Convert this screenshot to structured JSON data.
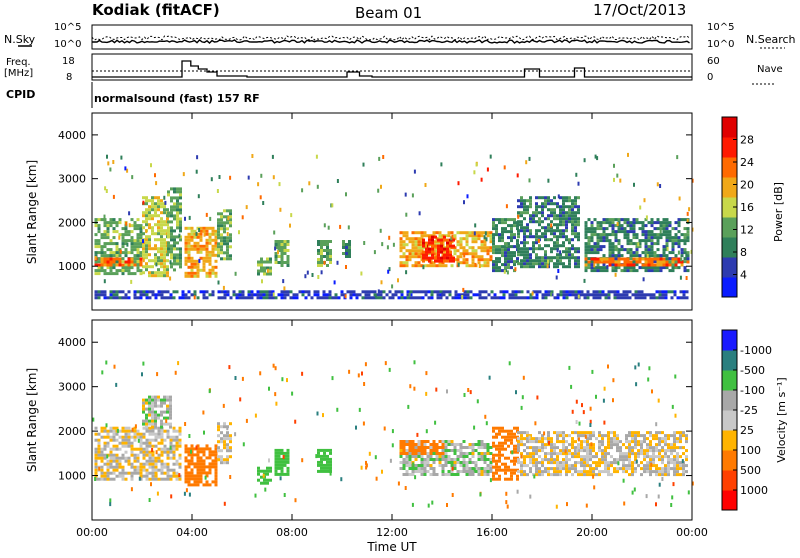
{
  "header": {
    "station": "Kodiak (fitACF)",
    "beam": "Beam 01",
    "date": "17/Oct/2013"
  },
  "noise_panel": {
    "left_label": "N.Sky",
    "right_label": "N.Search",
    "left_ticks": [
      "10^5",
      "10^0"
    ],
    "right_ticks": [
      "10^5",
      "10^0"
    ]
  },
  "freq_panel": {
    "left_label_line1": "Freq.",
    "left_label_line2": "[MHz]",
    "right_label": "Nave",
    "left_ticks": [
      "18",
      "8"
    ],
    "right_ticks": [
      "60",
      "0"
    ],
    "freq_steps": [
      {
        "t": 0.0,
        "v": 9.5
      },
      {
        "t": 3.6,
        "v": 17.5
      },
      {
        "t": 3.95,
        "v": 15.0
      },
      {
        "t": 4.25,
        "v": 13.5
      },
      {
        "t": 4.6,
        "v": 12.0
      },
      {
        "t": 5.0,
        "v": 10.0
      },
      {
        "t": 6.2,
        "v": 9.5
      },
      {
        "t": 10.2,
        "v": 12.0
      },
      {
        "t": 10.7,
        "v": 10.0
      },
      {
        "t": 11.2,
        "v": 9.5
      },
      {
        "t": 17.3,
        "v": 13.5
      },
      {
        "t": 17.9,
        "v": 9.5
      },
      {
        "t": 19.3,
        "v": 14.0
      },
      {
        "t": 19.7,
        "v": 9.5
      },
      {
        "t": 24.0,
        "v": 9.5
      }
    ]
  },
  "cpid": {
    "label": "CPID",
    "value": "normalsound (fast) 157 RF"
  },
  "colors": {
    "power": [
      "#0a1cff",
      "#2d3bb0",
      "#2f7f5a",
      "#5aa05a",
      "#c8d84a",
      "#f0a818",
      "#ff6a00",
      "#ff1a00",
      "#e00000"
    ],
    "velocity": [
      "#ff0000",
      "#ff4000",
      "#ff7a00",
      "#ffb400",
      "#c8c8c8",
      "#a8a8a8",
      "#40c040",
      "#2a7f7f",
      "#1a1aff"
    ]
  },
  "chart_data": [
    {
      "type": "heatmap",
      "name": "power-panel",
      "xlabel": "",
      "ylabel": "Slant Range [km]",
      "ylim": [
        0,
        4500
      ],
      "xlim": [
        0,
        24
      ],
      "yticks": [
        "1000",
        "2000",
        "3000",
        "4000"
      ],
      "colorbar": {
        "label": "Power [dB]",
        "ticks": [
          "4",
          "8",
          "12",
          "16",
          "20",
          "24",
          "28"
        ],
        "range": [
          0,
          32
        ]
      },
      "regions": [
        {
          "t0": 0.1,
          "t1": 2.0,
          "r0": 800,
          "r1": 2100,
          "level": 14
        },
        {
          "t0": 2.0,
          "t1": 3.0,
          "r0": 800,
          "r1": 2600,
          "level": 16
        },
        {
          "t0": 3.0,
          "t1": 3.5,
          "r0": 900,
          "r1": 2800,
          "level": 13
        },
        {
          "t0": 3.7,
          "t1": 5.0,
          "r0": 800,
          "r1": 1900,
          "level": 18
        },
        {
          "t0": 5.0,
          "t1": 5.6,
          "r0": 1200,
          "r1": 2300,
          "level": 12
        },
        {
          "t0": 6.6,
          "t1": 7.1,
          "r0": 800,
          "r1": 1200,
          "level": 14
        },
        {
          "t0": 7.3,
          "t1": 7.8,
          "r0": 1000,
          "r1": 1600,
          "level": 11
        },
        {
          "t0": 9.0,
          "t1": 9.5,
          "r0": 1000,
          "r1": 1600,
          "level": 13
        },
        {
          "t0": 10.0,
          "t1": 10.3,
          "r0": 1200,
          "r1": 1600,
          "level": 10
        },
        {
          "t0": 12.3,
          "t1": 16.0,
          "r0": 1000,
          "r1": 1800,
          "level": 20
        },
        {
          "t0": 13.2,
          "t1": 14.4,
          "r0": 1100,
          "r1": 1700,
          "level": 28
        },
        {
          "t0": 16.0,
          "t1": 17.0,
          "r0": 900,
          "r1": 2100,
          "level": 9
        },
        {
          "t0": 17.0,
          "t1": 19.5,
          "r0": 1000,
          "r1": 2600,
          "level": 8
        },
        {
          "t0": 19.7,
          "t1": 23.8,
          "r0": 900,
          "r1": 2100,
          "level": 9
        },
        {
          "t0": 19.7,
          "t1": 23.8,
          "r0": 1000,
          "r1": 1200,
          "level": 24
        },
        {
          "t0": 0.1,
          "t1": 2.0,
          "r0": 1000,
          "r1": 1200,
          "level": 24
        },
        {
          "t0": 0.1,
          "t1": 23.8,
          "r0": 250,
          "r1": 450,
          "level": 6
        }
      ]
    },
    {
      "type": "heatmap",
      "name": "velocity-panel",
      "xlabel": "Time UT",
      "ylabel": "Slant Range [km]",
      "ylim": [
        0,
        4500
      ],
      "xlim": [
        0,
        24
      ],
      "xticks": [
        "00:00",
        "04:00",
        "08:00",
        "12:00",
        "16:00",
        "20:00",
        "00:00"
      ],
      "yticks": [
        "1000",
        "2000",
        "3000",
        "4000"
      ],
      "colorbar": {
        "label": "Velocity [m s⁻¹]",
        "ticks": [
          "-1000",
          "-500",
          "-100",
          "-25",
          "25",
          "100",
          "500",
          "1000"
        ]
      },
      "regions": [
        {
          "t0": 0.1,
          "t1": 3.5,
          "r0": 900,
          "r1": 2100,
          "vel": 0
        },
        {
          "t0": 2.0,
          "t1": 3.2,
          "r0": 2100,
          "r1": 2800,
          "vel": 50
        },
        {
          "t0": 3.7,
          "t1": 5.0,
          "r0": 800,
          "r1": 1700,
          "vel": -300
        },
        {
          "t0": 5.0,
          "t1": 5.6,
          "r0": 1300,
          "r1": 2200,
          "vel": 0
        },
        {
          "t0": 6.6,
          "t1": 7.1,
          "r0": 800,
          "r1": 1200,
          "vel": 300
        },
        {
          "t0": 7.3,
          "t1": 7.8,
          "r0": 1000,
          "r1": 1600,
          "vel": 200
        },
        {
          "t0": 9.0,
          "t1": 9.5,
          "r0": 1100,
          "r1": 1600,
          "vel": 300
        },
        {
          "t0": 12.3,
          "t1": 16.0,
          "r0": 1000,
          "r1": 1800,
          "vel": 60
        },
        {
          "t0": 12.3,
          "t1": 14.0,
          "r0": 1500,
          "r1": 1800,
          "vel": -400
        },
        {
          "t0": 16.0,
          "t1": 17.0,
          "r0": 900,
          "r1": 2100,
          "vel": -200
        },
        {
          "t0": 17.0,
          "t1": 23.8,
          "r0": 1000,
          "r1": 2000,
          "vel": 0
        }
      ]
    }
  ]
}
